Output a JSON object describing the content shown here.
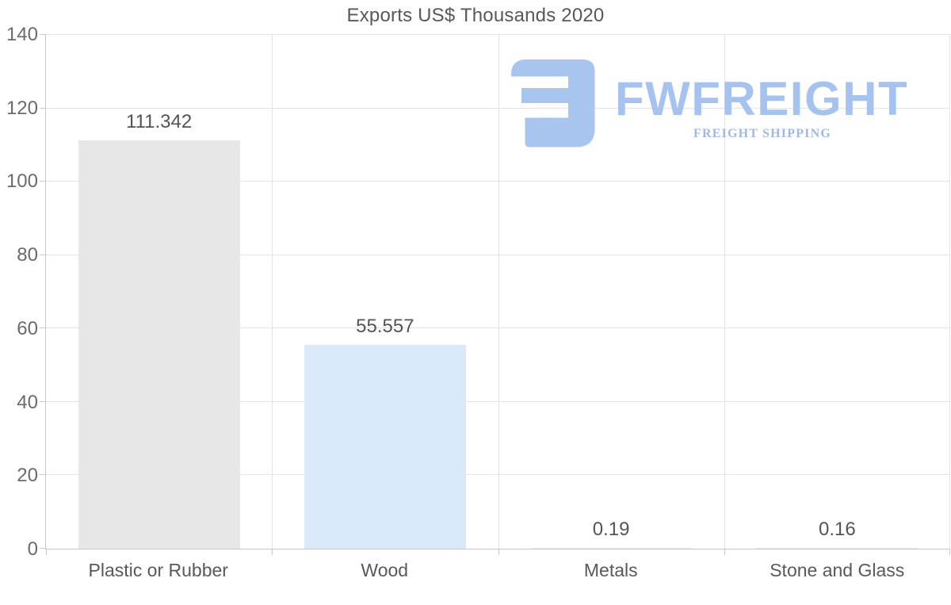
{
  "title": "Exports US$ Thousands 2020",
  "chart_data": {
    "type": "bar",
    "title": "Exports US$ Thousands 2020",
    "categories": [
      "Plastic or Rubber",
      "Wood",
      "Metals",
      "Stone and Glass"
    ],
    "values": [
      111.342,
      55.557,
      0.19,
      0.16
    ],
    "value_labels": [
      "111.342",
      "55.557",
      "0.19",
      "0.16"
    ],
    "bar_colors": [
      "#e7e7e7",
      "#d9e9f9",
      "#d9e9f9",
      "#d9e9f9"
    ],
    "xlabel": "",
    "ylabel": "",
    "ylim": [
      0,
      140
    ],
    "yticks": [
      0,
      20,
      40,
      60,
      80,
      100,
      120,
      140
    ],
    "grid": "on",
    "legend": "none"
  },
  "logo": {
    "brand": "FWFREIGHT",
    "tagline": "FREIGHT SHIPPING",
    "icon": "fw-freight-logo-icon",
    "brand_color": "#a6c3ef",
    "tagline_color": "#9fb9e4"
  },
  "colors": {
    "background": "#ffffff",
    "bar_gray": "#e7e7e7",
    "bar_blue": "#d9e9f9",
    "gridline": "#e4e4e4",
    "axis_line": "#c7c7c7",
    "title_text": "#58585a",
    "tick_text": "#6b6b6b",
    "label_text": "#595959"
  }
}
